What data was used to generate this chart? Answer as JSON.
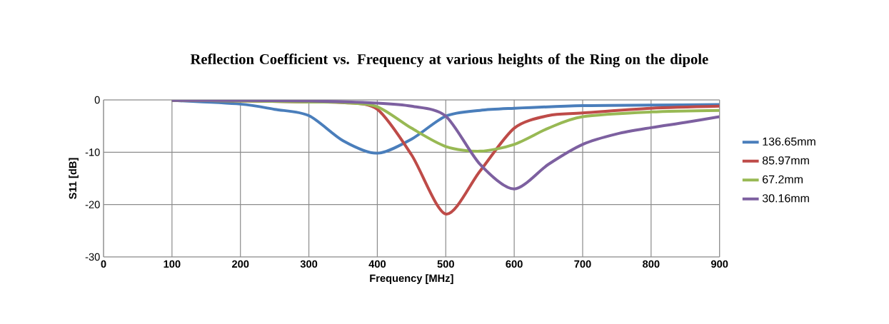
{
  "chart_data": {
    "type": "line",
    "title": "Reflection Coefficient vs. Frequency at various heights of the Ring on the dipole",
    "xlabel": "Frequency [MHz]",
    "ylabel": "S11 [dB]",
    "xlim": [
      0,
      900
    ],
    "xticks": [
      0,
      100,
      200,
      300,
      400,
      500,
      600,
      700,
      800,
      900
    ],
    "ylim": [
      -30,
      0
    ],
    "yticks": [
      -30,
      -20,
      -10,
      0
    ],
    "grid": true,
    "legend": "right",
    "marker": "none",
    "line_style": "solid",
    "series": [
      {
        "name": "136.65mm",
        "color": "#4a7ebb",
        "x": [
          100,
          200,
          250,
          300,
          350,
          400,
          450,
          500,
          550,
          600,
          700,
          800,
          900
        ],
        "values": [
          -0.1,
          -0.8,
          -1.8,
          -3,
          -7.8,
          -10.2,
          -7.5,
          -3.1,
          -2,
          -1.6,
          -1.1,
          -1,
          -0.9
        ]
      },
      {
        "name": "85.97mm",
        "color": "#be4b48",
        "x": [
          100,
          200,
          300,
          350,
          400,
          450,
          500,
          550,
          600,
          650,
          700,
          800,
          900
        ],
        "values": [
          -0.1,
          -0.2,
          -0.4,
          -0.5,
          -1.8,
          -10.5,
          -21.8,
          -13.6,
          -5.4,
          -3,
          -2.5,
          -1.6,
          -1.2
        ]
      },
      {
        "name": "67.2mm",
        "color": "#98b954",
        "x": [
          100,
          200,
          300,
          350,
          400,
          450,
          500,
          550,
          600,
          650,
          700,
          800,
          900
        ],
        "values": [
          -0.1,
          -0.2,
          -0.4,
          -0.5,
          -1.3,
          -5.4,
          -8.9,
          -9.8,
          -8.5,
          -5.4,
          -3.2,
          -2.3,
          -2
        ]
      },
      {
        "name": "30.16mm",
        "color": "#7d60a0",
        "x": [
          100,
          200,
          300,
          400,
          450,
          500,
          550,
          600,
          650,
          700,
          750,
          800,
          850,
          900
        ],
        "values": [
          -0.1,
          -0.1,
          -0.2,
          -0.6,
          -1.2,
          -3.1,
          -12.3,
          -17,
          -12.3,
          -8.5,
          -6.5,
          -5.3,
          -4.3,
          -3.2
        ]
      }
    ]
  }
}
